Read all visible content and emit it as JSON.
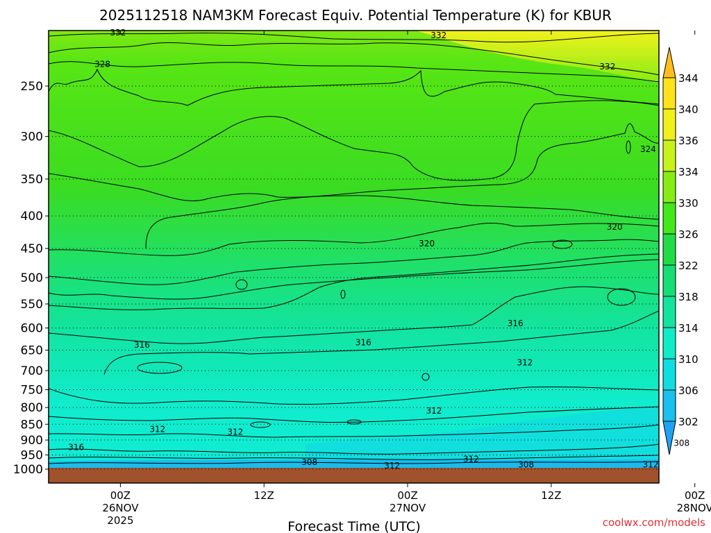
{
  "chart_data": {
    "type": "heatmap",
    "title": "2025112518 NAM3KM Forecast Equiv. Potential Temperature (K) for KBUR",
    "xlabel": "Forecast Time (UTC)",
    "ylabel": "",
    "y_scale": "log",
    "y_reversed": true,
    "y_ticks": [
      250,
      300,
      350,
      400,
      450,
      500,
      550,
      600,
      650,
      700,
      750,
      800,
      850,
      900,
      950,
      1000
    ],
    "x_range_hours": [
      -6,
      45
    ],
    "x_ticks": [
      {
        "hour": 0,
        "lines": [
          "00Z",
          "26NOV",
          "2025"
        ]
      },
      {
        "hour": 12,
        "lines": [
          "12Z"
        ]
      },
      {
        "hour": 24,
        "lines": [
          "00Z",
          "27NOV"
        ]
      },
      {
        "hour": 36,
        "lines": [
          "12Z"
        ]
      },
      {
        "hour": 48,
        "lines": [
          "00Z",
          "28NOV"
        ]
      }
    ],
    "colorbar": {
      "levels": [
        302,
        306,
        310,
        314,
        318,
        322,
        326,
        330,
        334,
        336,
        340,
        344
      ],
      "colors": [
        "#1fa2f5",
        "#19c0f0",
        "#10dde2",
        "#10ecc6",
        "#12e49e",
        "#16de74",
        "#22dc46",
        "#42e81a",
        "#86ec14",
        "#c8f21a",
        "#f0f01c",
        "#ffe21c",
        "#ffbe1c"
      ]
    },
    "contour_labels": [
      {
        "value": "332",
        "hour": -0.2,
        "p": 206
      },
      {
        "value": "332",
        "hour": 26.6,
        "p": 208
      },
      {
        "value": "332",
        "hour": 40.7,
        "p": 233
      },
      {
        "value": "328",
        "hour": -1.5,
        "p": 231
      },
      {
        "value": "324",
        "hour": 44.1,
        "p": 314
      },
      {
        "value": "320",
        "hour": 25.6,
        "p": 442
      },
      {
        "value": "320",
        "hour": 41.3,
        "p": 416
      },
      {
        "value": "316",
        "hour": 33.0,
        "p": 590
      },
      {
        "value": "316",
        "hour": 20.3,
        "p": 632
      },
      {
        "value": "316",
        "hour": 1.8,
        "p": 638
      },
      {
        "value": "312",
        "hour": 33.8,
        "p": 680
      },
      {
        "value": "312",
        "hour": 26.2,
        "p": 810
      },
      {
        "value": "312",
        "hour": 3.1,
        "p": 866
      },
      {
        "value": "312",
        "hour": 9.6,
        "p": 874
      },
      {
        "value": "316",
        "hour": -3.7,
        "p": 924
      },
      {
        "value": "312",
        "hour": 29.3,
        "p": 964
      },
      {
        "value": "308",
        "hour": 15.8,
        "p": 975
      },
      {
        "value": "312",
        "hour": 22.7,
        "p": 987
      },
      {
        "value": "308",
        "hour": 33.9,
        "p": 984
      },
      {
        "value": "312",
        "hour": 44.3,
        "p": 984
      },
      {
        "value": "308",
        "hour": 46.9,
        "p": 910
      }
    ],
    "legend": "colorbar right",
    "grid": "dotted horizontal at pressure levels"
  },
  "credit": "coolwx.com/models"
}
